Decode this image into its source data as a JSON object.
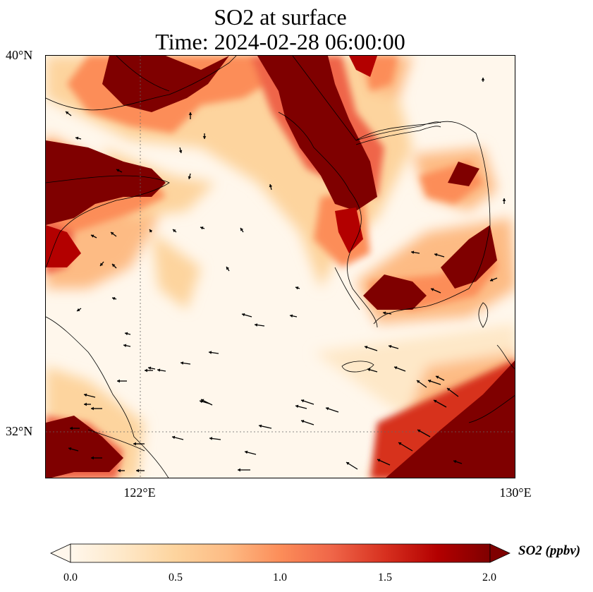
{
  "title": {
    "line1": "SO2 at surface",
    "line2": "Time: 2024-02-28 06:00:00"
  },
  "axes": {
    "lat_ticks": [
      "40°N",
      "32°N"
    ],
    "lon_ticks": [
      "122°E",
      "130°E"
    ],
    "lon_range": [
      120,
      130
    ],
    "lat_range": [
      31,
      40
    ],
    "gridlines": "dotted, at tick positions"
  },
  "colorbar": {
    "label": "SO2 (ppbv)",
    "ticks": [
      "0.0",
      "0.5",
      "1.0",
      "1.5",
      "2.0"
    ],
    "range": [
      0,
      2
    ],
    "extend": "both",
    "colormap": "OrRd",
    "colors": [
      "#fff7ec",
      "#fee8c8",
      "#fdd49e",
      "#fdbb84",
      "#fc8d59",
      "#ef6548",
      "#d7301f",
      "#b30000",
      "#7f0000"
    ]
  },
  "map": {
    "variable": "SO2",
    "level": "surface",
    "high_concentration_areas": [
      "Liaodong Peninsula / northern coast",
      "Shandong Peninsula",
      "Western Korea coast",
      "Southern Korea coast",
      "Yangtze River Delta",
      "Kyushu / southeast corner"
    ],
    "wind_vectors": "shown as black arrows"
  }
}
